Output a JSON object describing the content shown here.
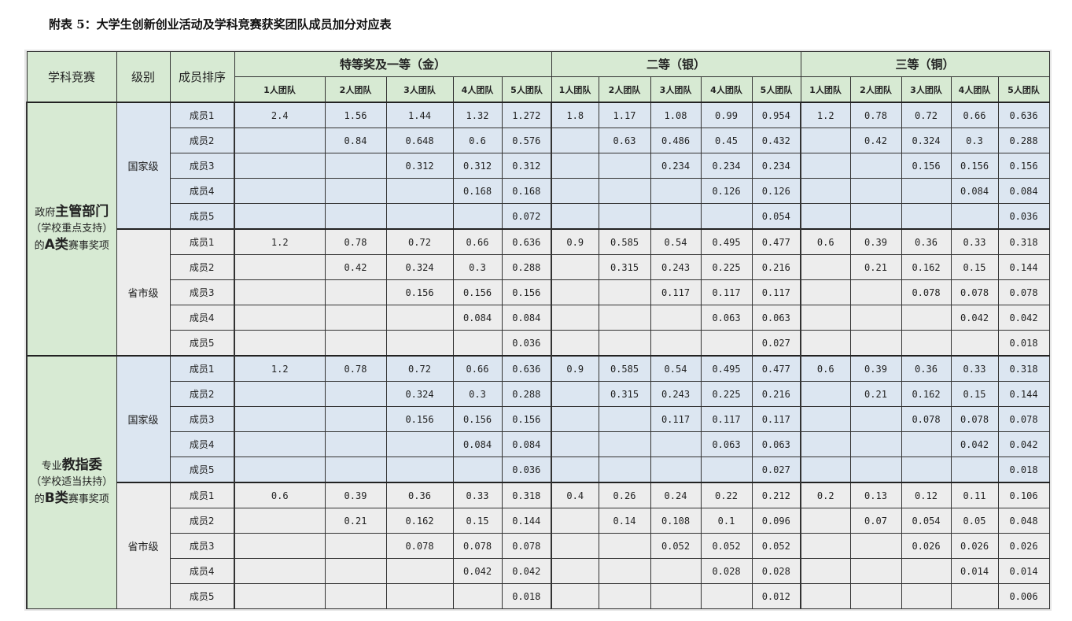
{
  "title": "附表 5：大学生创新创业活动及学科竞赛获奖团队成员加分对应表",
  "header": {
    "col1": "学科竞赛",
    "col2": "级别",
    "col3": "成员排序",
    "groups": [
      "特等奖及一等（金）",
      "二等（银）",
      "三等（铜）"
    ],
    "teams": [
      "1人团队",
      "2人团队",
      "3人团队",
      "4人团队",
      "5人团队"
    ]
  },
  "colors": {
    "header_green": "#d7ead3",
    "national_blue": "#dce6f1",
    "provincial_gray": "#ededed"
  },
  "categories": [
    {
      "parts": [
        {
          "t": "政府",
          "b": false
        },
        {
          "t": "主管部门",
          "b": true
        },
        {
          "t": "\n（学校重点支持）",
          "b": false
        },
        {
          "t": "\n的",
          "b": false
        },
        {
          "t": "A类",
          "b": true
        },
        {
          "t": "赛事奖项",
          "b": false
        }
      ],
      "levels": [
        {
          "name": "国家级",
          "rows": [
            {
              "member": "成员1",
              "values": [
                "2.4",
                "1.56",
                "1.44",
                "1.32",
                "1.272",
                "1.8",
                "1.17",
                "1.08",
                "0.99",
                "0.954",
                "1.2",
                "0.78",
                "0.72",
                "0.66",
                "0.636"
              ]
            },
            {
              "member": "成员2",
              "values": [
                "",
                "0.84",
                "0.648",
                "0.6",
                "0.576",
                "",
                "0.63",
                "0.486",
                "0.45",
                "0.432",
                "",
                "0.42",
                "0.324",
                "0.3",
                "0.288"
              ]
            },
            {
              "member": "成员3",
              "values": [
                "",
                "",
                "0.312",
                "0.312",
                "0.312",
                "",
                "",
                "0.234",
                "0.234",
                "0.234",
                "",
                "",
                "0.156",
                "0.156",
                "0.156"
              ]
            },
            {
              "member": "成员4",
              "values": [
                "",
                "",
                "",
                "0.168",
                "0.168",
                "",
                "",
                "",
                "0.126",
                "0.126",
                "",
                "",
                "",
                "0.084",
                "0.084"
              ]
            },
            {
              "member": "成员5",
              "values": [
                "",
                "",
                "",
                "",
                "0.072",
                "",
                "",
                "",
                "",
                "0.054",
                "",
                "",
                "",
                "",
                "0.036"
              ]
            }
          ]
        },
        {
          "name": "省市级",
          "rows": [
            {
              "member": "成员1",
              "values": [
                "1.2",
                "0.78",
                "0.72",
                "0.66",
                "0.636",
                "0.9",
                "0.585",
                "0.54",
                "0.495",
                "0.477",
                "0.6",
                "0.39",
                "0.36",
                "0.33",
                "0.318"
              ]
            },
            {
              "member": "成员2",
              "values": [
                "",
                "0.42",
                "0.324",
                "0.3",
                "0.288",
                "",
                "0.315",
                "0.243",
                "0.225",
                "0.216",
                "",
                "0.21",
                "0.162",
                "0.15",
                "0.144"
              ]
            },
            {
              "member": "成员3",
              "values": [
                "",
                "",
                "0.156",
                "0.156",
                "0.156",
                "",
                "",
                "0.117",
                "0.117",
                "0.117",
                "",
                "",
                "0.078",
                "0.078",
                "0.078"
              ]
            },
            {
              "member": "成员4",
              "values": [
                "",
                "",
                "",
                "0.084",
                "0.084",
                "",
                "",
                "",
                "0.063",
                "0.063",
                "",
                "",
                "",
                "0.042",
                "0.042"
              ]
            },
            {
              "member": "成员5",
              "values": [
                "",
                "",
                "",
                "",
                "0.036",
                "",
                "",
                "",
                "",
                "0.027",
                "",
                "",
                "",
                "",
                "0.018"
              ]
            }
          ]
        }
      ]
    },
    {
      "parts": [
        {
          "t": "专业",
          "b": false
        },
        {
          "t": "教指委",
          "b": true
        },
        {
          "t": "\n（学校适当扶持）",
          "b": false
        },
        {
          "t": "\n的",
          "b": false
        },
        {
          "t": "B类",
          "b": true
        },
        {
          "t": "赛事奖项",
          "b": false
        }
      ],
      "levels": [
        {
          "name": "国家级",
          "rows": [
            {
              "member": "成员1",
              "values": [
                "1.2",
                "0.78",
                "0.72",
                "0.66",
                "0.636",
                "0.9",
                "0.585",
                "0.54",
                "0.495",
                "0.477",
                "0.6",
                "0.39",
                "0.36",
                "0.33",
                "0.318"
              ]
            },
            {
              "member": "成员2",
              "values": [
                "",
                "",
                "0.324",
                "0.3",
                "0.288",
                "",
                "0.315",
                "0.243",
                "0.225",
                "0.216",
                "",
                "0.21",
                "0.162",
                "0.15",
                "0.144"
              ]
            },
            {
              "member": "成员3",
              "values": [
                "",
                "",
                "0.156",
                "0.156",
                "0.156",
                "",
                "",
                "0.117",
                "0.117",
                "0.117",
                "",
                "",
                "0.078",
                "0.078",
                "0.078"
              ]
            },
            {
              "member": "成员4",
              "values": [
                "",
                "",
                "",
                "0.084",
                "0.084",
                "",
                "",
                "",
                "0.063",
                "0.063",
                "",
                "",
                "",
                "0.042",
                "0.042"
              ]
            },
            {
              "member": "成员5",
              "values": [
                "",
                "",
                "",
                "",
                "0.036",
                "",
                "",
                "",
                "",
                "0.027",
                "",
                "",
                "",
                "",
                "0.018"
              ]
            }
          ]
        },
        {
          "name": "省市级",
          "rows": [
            {
              "member": "成员1",
              "values": [
                "0.6",
                "0.39",
                "0.36",
                "0.33",
                "0.318",
                "0.4",
                "0.26",
                "0.24",
                "0.22",
                "0.212",
                "0.2",
                "0.13",
                "0.12",
                "0.11",
                "0.106"
              ]
            },
            {
              "member": "成员2",
              "values": [
                "",
                "0.21",
                "0.162",
                "0.15",
                "0.144",
                "",
                "0.14",
                "0.108",
                "0.1",
                "0.096",
                "",
                "0.07",
                "0.054",
                "0.05",
                "0.048"
              ]
            },
            {
              "member": "成员3",
              "values": [
                "",
                "",
                "0.078",
                "0.078",
                "0.078",
                "",
                "",
                "0.052",
                "0.052",
                "0.052",
                "",
                "",
                "0.026",
                "0.026",
                "0.026"
              ]
            },
            {
              "member": "成员4",
              "values": [
                "",
                "",
                "",
                "0.042",
                "0.042",
                "",
                "",
                "",
                "0.028",
                "0.028",
                "",
                "",
                "",
                "0.014",
                "0.014"
              ]
            },
            {
              "member": "成员5",
              "values": [
                "",
                "",
                "",
                "",
                "0.018",
                "",
                "",
                "",
                "",
                "0.012",
                "",
                "",
                "",
                "",
                "0.006"
              ]
            }
          ]
        }
      ]
    }
  ]
}
